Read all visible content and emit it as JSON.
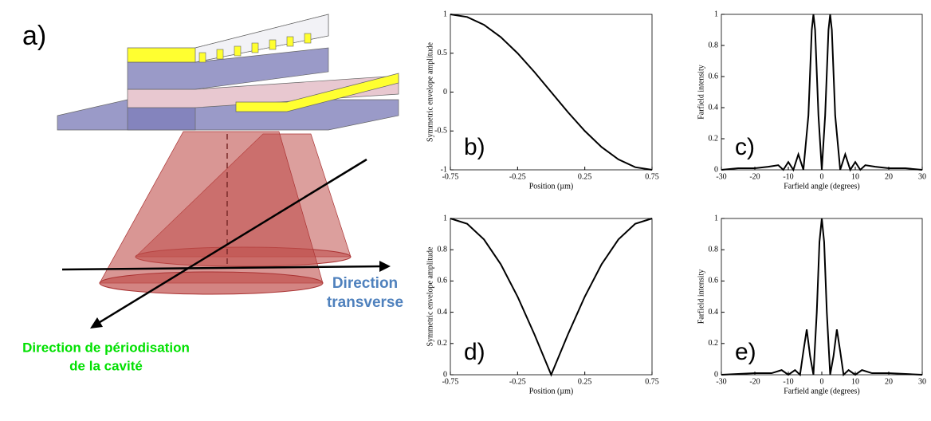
{
  "panel_a": {
    "label": "a)",
    "transverse": [
      "Direction",
      "transverse"
    ],
    "periodisation": [
      "Direction de périodisation",
      "de la cavité"
    ]
  },
  "chart_data": [
    {
      "type": "line",
      "panel_label": "b)",
      "xlabel": "Position (µm)",
      "ylabel": "Symmetric envelope amplitude",
      "x": [
        -0.75,
        -0.625,
        -0.5,
        -0.375,
        -0.25,
        -0.125,
        0,
        0.125,
        0.25,
        0.375,
        0.5,
        0.625,
        0.75
      ],
      "values": [
        1,
        0.966,
        0.866,
        0.707,
        0.5,
        0.259,
        0,
        -0.259,
        -0.5,
        -0.707,
        -0.866,
        -0.966,
        -1
      ],
      "color": "#000000",
      "xlim": [
        -0.75,
        0.75
      ],
      "ylim": [
        -1,
        1
      ],
      "xticks": [
        -0.75,
        -0.25,
        0.25,
        0.75
      ],
      "yticks": [
        -1,
        -0.5,
        0,
        0.5,
        1
      ]
    },
    {
      "type": "line",
      "panel_label": "c)",
      "xlabel": "Farfield angle (degrees)",
      "ylabel": "Farfield intensity",
      "x": [
        -30,
        -25,
        -20,
        -16,
        -13,
        -11.5,
        -10,
        -8.5,
        -7,
        -5.5,
        -4,
        -3,
        -2.5,
        -2,
        -1,
        0,
        1,
        2,
        2.5,
        3,
        4,
        5.5,
        7,
        8.5,
        10,
        11.5,
        13,
        16,
        20,
        25,
        30
      ],
      "values": [
        0,
        0.01,
        0.01,
        0.02,
        0.03,
        0,
        0.05,
        0,
        0.1,
        0,
        0.35,
        0.9,
        1,
        0.9,
        0.35,
        0,
        0.35,
        0.9,
        1,
        0.9,
        0.35,
        0,
        0.1,
        0,
        0.05,
        0,
        0.03,
        0.02,
        0.01,
        0.01,
        0
      ],
      "color": "#000000",
      "xlim": [
        -30,
        30
      ],
      "ylim": [
        0,
        1
      ],
      "xticks": [
        -30,
        -20,
        -10,
        0,
        10,
        20,
        30
      ],
      "yticks": [
        0,
        0.2,
        0.4,
        0.6,
        0.8,
        1
      ]
    },
    {
      "type": "line",
      "panel_label": "d)",
      "xlabel": "Position (µm)",
      "ylabel": "Symmetric envelope amplitude",
      "x": [
        -0.75,
        -0.625,
        -0.5,
        -0.375,
        -0.25,
        -0.125,
        0,
        0.125,
        0.25,
        0.375,
        0.5,
        0.625,
        0.75
      ],
      "values": [
        1,
        0.966,
        0.866,
        0.707,
        0.5,
        0.259,
        0,
        0.259,
        0.5,
        0.707,
        0.866,
        0.966,
        1
      ],
      "color": "#000000",
      "xlim": [
        -0.75,
        0.75
      ],
      "ylim": [
        0,
        1
      ],
      "xticks": [
        -0.75,
        -0.25,
        0.25,
        0.75
      ],
      "yticks": [
        0,
        0.2,
        0.4,
        0.6,
        0.8,
        1
      ]
    },
    {
      "type": "line",
      "panel_label": "e)",
      "xlabel": "Farfield angle (degrees)",
      "ylabel": "Farfield intensity",
      "x": [
        -30,
        -20,
        -15,
        -12,
        -10,
        -8,
        -6.5,
        -5.5,
        -4.5,
        -3.5,
        -2.5,
        -1.5,
        -0.7,
        0,
        0.7,
        1.5,
        2.5,
        3.5,
        4.5,
        5.5,
        6.5,
        8,
        10,
        12,
        15,
        20,
        30
      ],
      "values": [
        0,
        0.01,
        0.01,
        0.03,
        0,
        0.03,
        0,
        0.15,
        0.29,
        0.12,
        0,
        0.4,
        0.85,
        1,
        0.85,
        0.4,
        0,
        0.12,
        0.29,
        0.15,
        0,
        0.03,
        0,
        0.03,
        0.01,
        0.01,
        0
      ],
      "color": "#000000",
      "xlim": [
        -30,
        30
      ],
      "ylim": [
        0,
        1
      ],
      "xticks": [
        -30,
        -20,
        -10,
        0,
        10,
        20,
        30
      ],
      "yticks": [
        0,
        0.2,
        0.4,
        0.6,
        0.8,
        1
      ]
    }
  ]
}
